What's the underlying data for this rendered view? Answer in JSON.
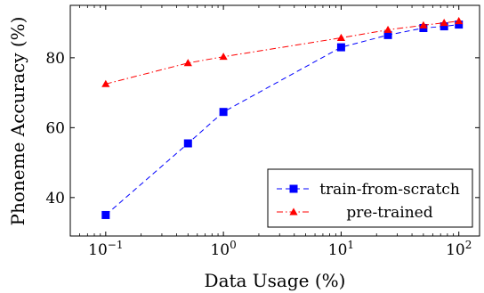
{
  "chart_data": {
    "type": "line",
    "title": "",
    "xlabel": "Data Usage (%)",
    "ylabel": "Phoneme Accuracy (%)",
    "xscale": "log",
    "xlim": [
      0.05,
      150
    ],
    "ylim": [
      29,
      95
    ],
    "xticks": [
      {
        "value": 0.1,
        "base": "10",
        "exp": "−1"
      },
      {
        "value": 1,
        "base": "10",
        "exp": "0"
      },
      {
        "value": 10,
        "base": "10",
        "exp": "1"
      },
      {
        "value": 100,
        "base": "10",
        "exp": "2"
      }
    ],
    "yticks": [
      40,
      60,
      80
    ],
    "grid": false,
    "legend_position": "bottom-right",
    "series": [
      {
        "name": "train-from-scratch",
        "color": "#0000ff",
        "marker": "square",
        "dash": "dashed",
        "x": [
          0.1,
          0.5,
          1,
          10,
          25,
          50,
          75,
          100
        ],
        "y": [
          35,
          55.5,
          64.5,
          83,
          86.5,
          88.5,
          89,
          89.5
        ]
      },
      {
        "name": "pre-trained",
        "color": "#ff0000",
        "marker": "triangle",
        "dash": "dashdot",
        "x": [
          0.1,
          0.5,
          1,
          10,
          25,
          50,
          75,
          100
        ],
        "y": [
          72.5,
          78.5,
          80.3,
          85.7,
          88,
          89.3,
          90,
          90.5
        ]
      }
    ]
  }
}
